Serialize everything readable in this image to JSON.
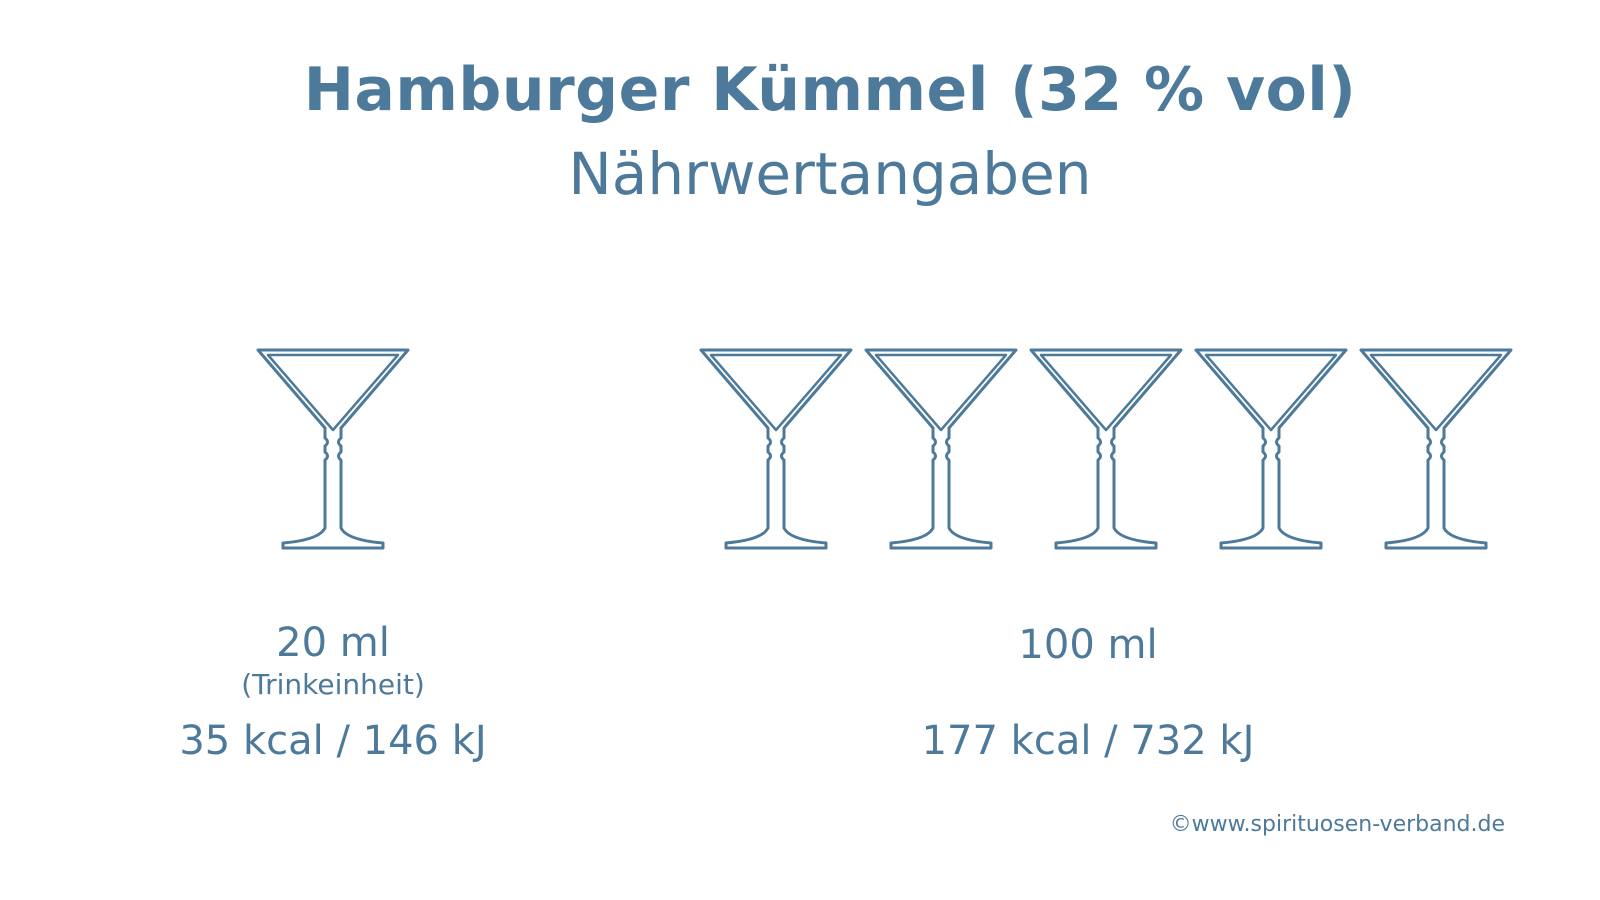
{
  "header": {
    "title": "Hamburger Kümmel (32 % vol)",
    "subtitle": "Nährwertangaben"
  },
  "portions": [
    {
      "volume": "20 ml",
      "note": "(Trinkeinheit)",
      "energy": "35 kcal / 146 kJ",
      "glass_count": 1
    },
    {
      "volume": "100 ml",
      "note": "",
      "energy": "177 kcal / 732 kJ",
      "glass_count": 5
    }
  ],
  "footer": {
    "copyright": "©www.spirituosen-verband.de"
  },
  "colors": {
    "text": "#4d7a9a",
    "glass_outline": "#4d7a9a",
    "background": "#ffffff"
  },
  "icons": {
    "glass": "martini-glass-icon"
  }
}
